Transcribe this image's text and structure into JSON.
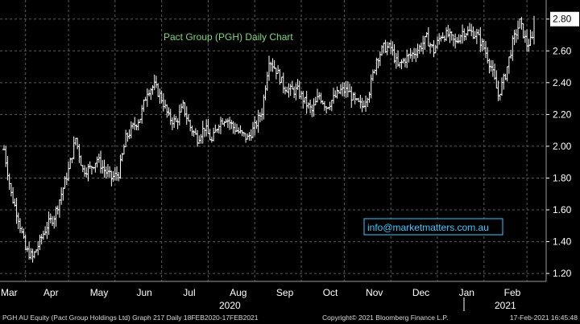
{
  "chart_data": {
    "type": "line",
    "title": "Pact Group (PGH) Daily Chart",
    "annotation": "info@marketmatters.com.au",
    "ylim": [
      1.15,
      2.92
    ],
    "y_ticks": [
      "2.80",
      "2.60",
      "2.40",
      "2.20",
      "2.00",
      "1.80",
      "1.60",
      "1.40",
      "1.20"
    ],
    "x_ticks": [
      "Mar",
      "Apr",
      "May",
      "Jun",
      "Jul",
      "Aug",
      "Sep",
      "Oct",
      "Nov",
      "Dec",
      "Jan",
      "Feb"
    ],
    "x_year_labels": [
      "2020",
      "2021"
    ],
    "grid": true,
    "colors": {
      "background": "#000000",
      "bars": "#ffffff",
      "grid": "#5a5a5a",
      "title": "#7dd87d",
      "annotation": "#33ccff"
    },
    "series": [
      {
        "values": [
          1.98,
          1.7,
          1.55,
          1.35,
          1.3,
          1.4,
          1.5,
          1.56,
          1.7,
          1.85,
          2.05,
          1.85,
          1.86,
          1.92,
          1.85,
          1.8,
          1.83,
          2.05,
          2.12,
          2.18,
          2.35,
          2.38,
          2.3,
          2.18,
          2.15,
          2.25,
          2.12,
          2.05,
          2.12,
          2.03,
          2.15,
          2.18,
          2.12,
          2.08,
          2.05,
          2.12,
          2.22,
          2.55,
          2.48,
          2.38,
          2.35,
          2.35,
          2.28,
          2.22,
          2.32,
          2.25,
          2.3,
          2.35,
          2.35,
          2.28,
          2.25,
          2.35,
          2.55,
          2.62,
          2.62,
          2.5,
          2.55,
          2.58,
          2.62,
          2.68,
          2.6,
          2.7,
          2.7,
          2.65,
          2.72,
          2.72,
          2.7,
          2.62,
          2.5,
          2.32,
          2.45,
          2.65,
          2.78,
          2.64,
          2.68
        ]
      }
    ]
  },
  "footer": {
    "left": "PGH AU Equity (Pact Group Holdings Ltd) Graph 217  Daily 18FEB2020-17FEB2021",
    "center": "Copyright© 2021 Bloomberg Finance L.P.",
    "right": "17-Feb-2021 16:45:48"
  }
}
